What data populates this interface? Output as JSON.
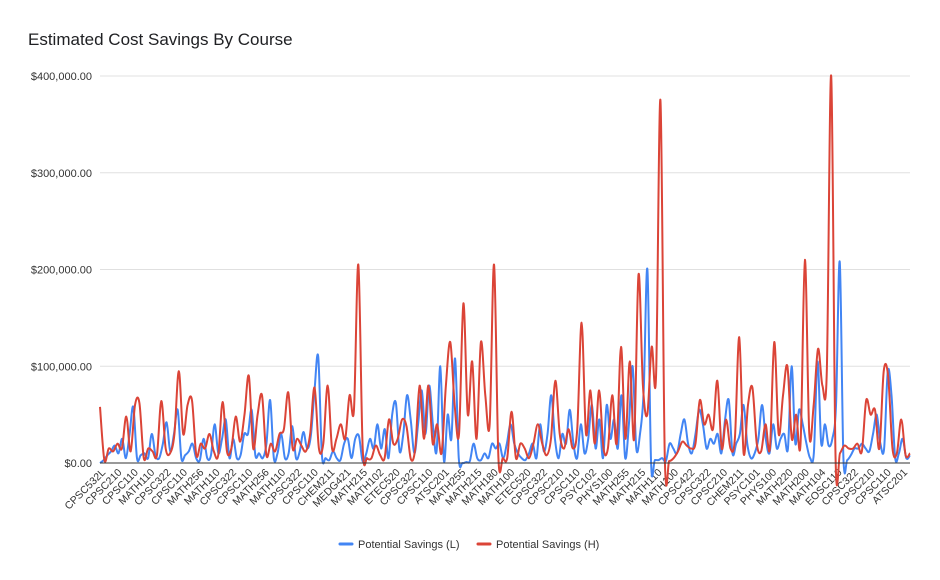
{
  "chart_data": {
    "type": "line",
    "title": "Estimated Cost Savings By Course",
    "xlabel": "",
    "ylabel": "",
    "ylim": [
      0,
      400000
    ],
    "yticks": [
      {
        "value": 0,
        "label": "$0.00"
      },
      {
        "value": 100000,
        "label": "$100,000.00"
      },
      {
        "value": 200000,
        "label": "$200,000.00"
      },
      {
        "value": 300000,
        "label": "$300,000.00"
      },
      {
        "value": 400000,
        "label": "$400,000.00"
      }
    ],
    "xtick_labels": [
      "CPSC532L",
      "CPSC210",
      "CPSC110",
      "MATH110",
      "CPSC322",
      "CPSC110",
      "MATH256",
      "MATH110",
      "CPSC322",
      "CPSC110",
      "MATH256",
      "MATH110",
      "CPSC322",
      "CPSC110",
      "CHEM211",
      "MEDG421",
      "MATH215",
      "MATH102",
      "ETEC520",
      "CPSC322",
      "CPSC110",
      "ATSC201",
      "MATH255",
      "MATH215",
      "MATH180",
      "MATH100",
      "ETEC520",
      "CPSC322",
      "CPSC210",
      "CPSC110",
      "PSYC102",
      "PHYS100",
      "MATH255",
      "MATH215",
      "MATH110",
      "MATH100",
      "CPSC422",
      "CPSC322",
      "CPSC210",
      "CHEM211",
      "PSYC101",
      "PHYS100",
      "MATH220",
      "MATH200",
      "MATH104",
      "EOSC110",
      "CPSC322",
      "CPSC210",
      "CPSC110",
      "ATSC201"
    ],
    "grid": true,
    "legend_position": "bottom",
    "series": [
      {
        "name": "Potential Savings (L)",
        "color": "#4285f4",
        "values": [
          0,
          3000,
          8000,
          12000,
          18000,
          10000,
          25000,
          5000,
          30000,
          58000,
          5000,
          8000,
          10000,
          5000,
          30000,
          8000,
          5000,
          20000,
          42000,
          12000,
          30000,
          55000,
          5000,
          8000,
          12000,
          20000,
          5000,
          3000,
          25000,
          5000,
          8000,
          40000,
          10000,
          25000,
          45000,
          5000,
          25000,
          5000,
          8000,
          30000,
          30000,
          55000,
          8000,
          10000,
          5000,
          20000,
          65000,
          5000,
          10000,
          30000,
          5000,
          10000,
          38000,
          5000,
          12000,
          32000,
          15000,
          28000,
          75000,
          110000,
          8000,
          5000,
          3000,
          12000,
          5000,
          3000,
          20000,
          25000,
          5000,
          25000,
          28000,
          2000,
          10000,
          25000,
          15000,
          40000,
          15000,
          35000,
          5000,
          50000,
          62000,
          12000,
          30000,
          70000,
          45000,
          10000,
          40000,
          75000,
          30000,
          80000,
          40000,
          12000,
          100000,
          2000,
          50000,
          25000,
          108000,
          5000,
          0,
          1000,
          2000,
          20000,
          5000,
          3000,
          10000,
          5000,
          20000,
          15000,
          20000,
          5000,
          20000,
          40000,
          20000,
          10000,
          5000,
          3000,
          10000,
          20000,
          5000,
          40000,
          12000,
          30000,
          70000,
          25000,
          5000,
          30000,
          20000,
          55000,
          20000,
          5000,
          40000,
          10000,
          25000,
          60000,
          15000,
          45000,
          5000,
          60000,
          25000,
          45000,
          15000,
          70000,
          5000,
          40000,
          100000,
          15000,
          30000,
          75000,
          200000,
          0,
          3000,
          3000,
          5000,
          2000,
          20000,
          15000,
          10000,
          30000,
          45000,
          20000,
          10000,
          30000,
          55000,
          40000,
          15000,
          25000,
          20000,
          30000,
          10000,
          45000,
          65000,
          10000,
          20000,
          30000,
          60000,
          20000,
          5000,
          10000,
          25000,
          60000,
          25000,
          10000,
          40000,
          15000,
          25000,
          30000,
          15000,
          100000,
          20000,
          55000,
          40000,
          20000,
          5000,
          10000,
          105000,
          20000,
          40000,
          18000,
          25000,
          60000,
          208000,
          5000,
          3000,
          8000,
          15000,
          15000,
          20000,
          15000,
          12000,
          30000,
          50000,
          20000,
          15000,
          95000,
          70000,
          5000,
          10000,
          25000,
          5000,
          8000
        ],
        "values_ref": "decimated"
      },
      {
        "name": "Potential Savings (H)",
        "color": "#db4437",
        "values": [
          58000,
          3000,
          15000,
          12000,
          20000,
          15000,
          48000,
          12000,
          60000,
          62000,
          5000,
          15000,
          12000,
          8000,
          64000,
          15000,
          10000,
          30000,
          95000,
          30000,
          60000,
          65000,
          8000,
          20000,
          15000,
          30000,
          12000,
          8000,
          63000,
          12000,
          15000,
          48000,
          22000,
          50000,
          90000,
          15000,
          50000,
          70000,
          8000,
          20000,
          12000,
          30000,
          35000,
          73000,
          15000,
          25000,
          18000,
          12000,
          30000,
          78000,
          15000,
          20000,
          80000,
          15000,
          25000,
          40000,
          25000,
          70000,
          55000,
          205000,
          15000,
          5000,
          5000,
          18000,
          8000,
          5000,
          45000,
          20000,
          25000,
          45000,
          38000,
          4000,
          15000,
          80000,
          25000,
          80000,
          20000,
          40000,
          10000,
          80000,
          125000,
          60000,
          30000,
          165000,
          50000,
          105000,
          25000,
          125000,
          70000,
          40000,
          205000,
          5000,
          5000,
          5000,
          53000,
          5000,
          20000,
          15000,
          5000,
          20000,
          40000,
          20000,
          8000,
          25000,
          85000,
          30000,
          15000,
          35000,
          15000,
          35000,
          145000,
          30000,
          75000,
          20000,
          75000,
          15000,
          15000,
          70000,
          20000,
          120000,
          25000,
          105000,
          25000,
          195000,
          80000,
          50000,
          120000,
          90000,
          375000,
          5000,
          2000,
          5000,
          12000,
          22000,
          18000,
          15000,
          20000,
          65000,
          40000,
          50000,
          35000,
          85000,
          15000,
          45000,
          15000,
          25000,
          130000,
          10000,
          60000,
          78000,
          20000,
          12000,
          40000,
          15000,
          125000,
          30000,
          70000,
          100000,
          25000,
          50000,
          20000,
          210000,
          30000,
          60000,
          118000,
          80000,
          95000,
          400000,
          5000,
          10000,
          18000,
          15000,
          15000,
          20000,
          12000,
          65000,
          50000,
          55000,
          15000,
          95000,
          90000,
          15000,
          10000,
          45000,
          8000,
          10000
        ]
      }
    ]
  },
  "legend": {
    "series_l": "Potential Savings (L)",
    "series_h": "Potential Savings (H)"
  }
}
